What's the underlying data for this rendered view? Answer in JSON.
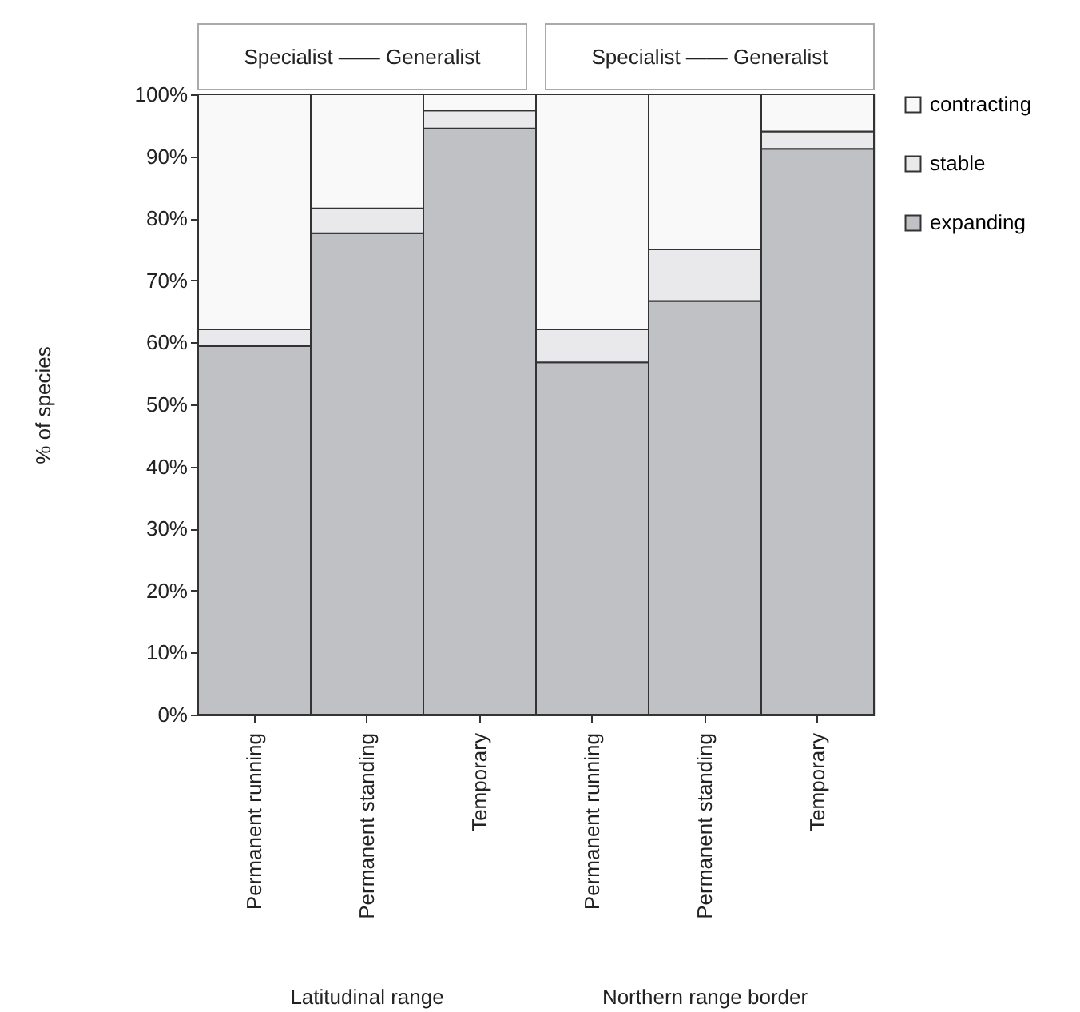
{
  "chart_data": {
    "type": "bar",
    "stacked": true,
    "ylabel": "% of species",
    "categories": [
      "Permanent running",
      "Permanent standing",
      "Temporary",
      "Permanent running",
      "Permanent standing",
      "Temporary"
    ],
    "series": [
      {
        "name": "expanding",
        "color": "#c0c1c5",
        "values": [
          59.4,
          77.6,
          94.5,
          56.8,
          66.7,
          91.2
        ]
      },
      {
        "name": "stable",
        "color": "#e9e9eb",
        "values": [
          2.7,
          4.0,
          2.9,
          5.3,
          8.3,
          2.8
        ]
      },
      {
        "name": "contracting",
        "color": "#f9f9f9",
        "values": [
          37.9,
          18.4,
          2.6,
          37.9,
          25.0,
          6.0
        ]
      }
    ],
    "ylim": [
      0,
      100
    ],
    "yticks": [
      {
        "value": 0,
        "label": "0%"
      },
      {
        "value": 10,
        "label": "10%"
      },
      {
        "value": 20,
        "label": "20%"
      },
      {
        "value": 30,
        "label": "30%"
      },
      {
        "value": 40,
        "label": "40%"
      },
      {
        "value": 50,
        "label": "50%"
      },
      {
        "value": 60,
        "label": "60%"
      },
      {
        "value": 70,
        "label": "70%"
      },
      {
        "value": 80,
        "label": "80%"
      },
      {
        "value": 90,
        "label": "90%"
      },
      {
        "value": 100,
        "label": "100%"
      }
    ],
    "legend": "top right",
    "annotations": [
      "Specialist —— Generalist",
      "Specialist —— Generalist",
      "Latitudinal range",
      "Northern range border"
    ]
  }
}
